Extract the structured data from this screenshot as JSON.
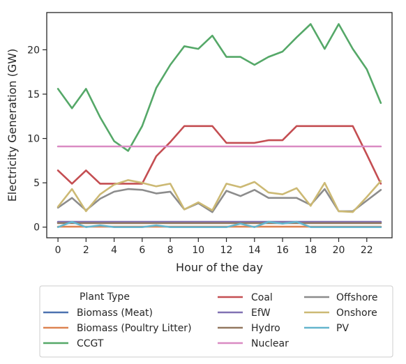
{
  "chart_data": {
    "type": "line",
    "xlabel": "Hour of the day",
    "ylabel": "Electricity Generation (GW)",
    "xlim": [
      -0.8,
      23.8
    ],
    "ylim": [
      -1.2,
      24.2
    ],
    "xticks": [
      0,
      2,
      4,
      6,
      8,
      10,
      12,
      14,
      16,
      18,
      20,
      22
    ],
    "yticks": [
      0,
      5,
      10,
      15,
      20
    ],
    "grid": false,
    "legend_title": "Plant Type",
    "legend_placement": "below",
    "x": [
      0,
      1,
      2,
      3,
      4,
      5,
      6,
      7,
      8,
      9,
      10,
      11,
      12,
      13,
      14,
      15,
      16,
      17,
      18,
      19,
      20,
      21,
      22,
      23
    ],
    "series": [
      {
        "name": "Biomass (Meat)",
        "color": "#4c72b0",
        "values": [
          0.5,
          0.5,
          0.5,
          0.5,
          0.5,
          0.5,
          0.5,
          0.5,
          0.5,
          0.5,
          0.5,
          0.5,
          0.5,
          0.5,
          0.5,
          0.5,
          0.5,
          0.5,
          0.5,
          0.5,
          0.5,
          0.5,
          0.5,
          0.5
        ]
      },
      {
        "name": "Biomass (Poultry Litter)",
        "color": "#dd8452",
        "values": [
          0.05,
          0.05,
          0.05,
          0.05,
          0.05,
          0.05,
          0.05,
          0.05,
          0.05,
          0.05,
          0.05,
          0.05,
          0.05,
          0.05,
          0.05,
          0.05,
          0.05,
          0.05,
          0.05,
          0.05,
          0.05,
          0.05,
          0.05,
          0.05
        ]
      },
      {
        "name": "CCGT",
        "color": "#55a868",
        "values": [
          15.6,
          13.4,
          15.6,
          12.4,
          9.7,
          8.6,
          11.4,
          15.7,
          18.3,
          20.4,
          20.1,
          21.6,
          19.2,
          19.2,
          18.3,
          19.2,
          19.8,
          21.4,
          22.9,
          20.1,
          22.9,
          20.1,
          17.8,
          14.0
        ]
      },
      {
        "name": "Coal",
        "color": "#c44e52",
        "values": [
          6.4,
          4.9,
          6.4,
          4.9,
          4.9,
          4.9,
          4.9,
          8.0,
          9.6,
          11.4,
          11.4,
          11.4,
          9.5,
          9.5,
          9.5,
          9.8,
          9.8,
          11.4,
          11.4,
          11.4,
          11.4,
          11.4,
          8.2,
          4.9
        ]
      },
      {
        "name": "EfW",
        "color": "#8172b3",
        "values": [
          0.6,
          0.6,
          0.6,
          0.6,
          0.6,
          0.6,
          0.6,
          0.6,
          0.6,
          0.6,
          0.6,
          0.6,
          0.6,
          0.6,
          0.6,
          0.6,
          0.6,
          0.6,
          0.6,
          0.6,
          0.6,
          0.6,
          0.6,
          0.6
        ]
      },
      {
        "name": "Hydro",
        "color": "#937860",
        "values": [
          0.45,
          0.45,
          0.45,
          0.45,
          0.45,
          0.45,
          0.45,
          0.45,
          0.45,
          0.45,
          0.45,
          0.45,
          0.45,
          0.45,
          0.45,
          0.45,
          0.45,
          0.45,
          0.45,
          0.45,
          0.45,
          0.45,
          0.45,
          0.45
        ]
      },
      {
        "name": "Nuclear",
        "color": "#da8bc3",
        "values": [
          9.1,
          9.1,
          9.1,
          9.1,
          9.1,
          9.1,
          9.1,
          9.1,
          9.1,
          9.1,
          9.1,
          9.1,
          9.1,
          9.1,
          9.1,
          9.1,
          9.1,
          9.1,
          9.1,
          9.1,
          9.1,
          9.1,
          9.1,
          9.1
        ]
      },
      {
        "name": "Offshore",
        "color": "#8c8c8c",
        "values": [
          2.2,
          3.3,
          1.9,
          3.2,
          4.0,
          4.3,
          4.2,
          3.8,
          4.0,
          2.0,
          2.7,
          1.7,
          4.1,
          3.5,
          4.2,
          3.3,
          3.3,
          3.3,
          2.5,
          4.3,
          1.8,
          1.8,
          3.0,
          4.2
        ]
      },
      {
        "name": "Onshore",
        "color": "#ccb974",
        "values": [
          2.3,
          4.3,
          1.8,
          3.7,
          4.8,
          5.3,
          5.0,
          4.6,
          4.9,
          2.0,
          2.8,
          1.9,
          4.9,
          4.5,
          5.1,
          3.9,
          3.7,
          4.4,
          2.4,
          5.0,
          1.8,
          1.7,
          3.4,
          5.2
        ]
      },
      {
        "name": "PV",
        "color": "#64b5cd",
        "values": [
          0.0,
          0.6,
          0.0,
          0.2,
          0.0,
          0.0,
          0.0,
          0.2,
          0.0,
          0.0,
          0.0,
          0.0,
          0.0,
          0.4,
          0.0,
          0.6,
          0.4,
          0.6,
          0.0,
          0.0,
          0.0,
          0.0,
          0.0,
          0.0
        ]
      }
    ]
  }
}
